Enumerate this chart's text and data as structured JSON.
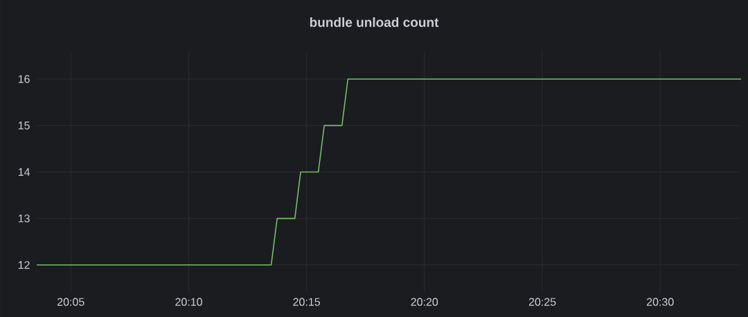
{
  "chart_data": {
    "type": "line",
    "title": "bundle unload count",
    "x": [
      20.0592,
      20.225,
      20.2292,
      20.2417,
      20.2458,
      20.2583,
      20.2625,
      20.275,
      20.2792,
      20.5572
    ],
    "series": [
      {
        "color": "#73bf69",
        "values": [
          12,
          12,
          13,
          13,
          14,
          14,
          15,
          15,
          16,
          16
        ]
      }
    ],
    "xlim": [
      20.0592,
      20.5572
    ],
    "xticks": [
      {
        "value": 20.0833,
        "label": "20:05"
      },
      {
        "value": 20.1667,
        "label": "20:10"
      },
      {
        "value": 20.25,
        "label": "20:15"
      },
      {
        "value": 20.3333,
        "label": "20:20"
      },
      {
        "value": 20.4167,
        "label": "20:25"
      },
      {
        "value": 20.5,
        "label": "20:30"
      }
    ],
    "ylim": [
      11.4,
      16.6
    ],
    "yticks": [
      12,
      13,
      14,
      15,
      16
    ],
    "grid": true,
    "marker": "none",
    "line_style": "solid"
  }
}
